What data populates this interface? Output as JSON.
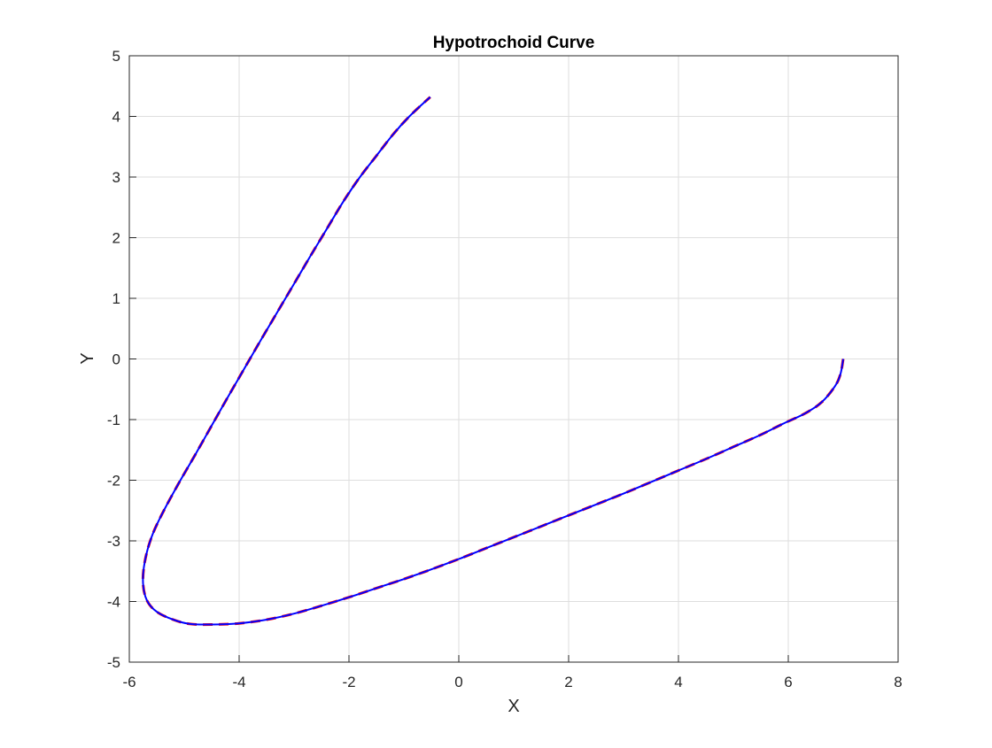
{
  "chart_data": {
    "type": "line",
    "title": "Hypotrochoid Curve",
    "xlabel": "X",
    "ylabel": "Y",
    "xlim": [
      -6,
      8
    ],
    "ylim": [
      -5,
      5
    ],
    "xticks": [
      "-6",
      "-4",
      "-2",
      "0",
      "2",
      "4",
      "6",
      "8"
    ],
    "yticks": [
      "-5",
      "-4",
      "-3",
      "-2",
      "-1",
      "0",
      "1",
      "2",
      "3",
      "4",
      "5"
    ],
    "grid": true,
    "legend": "none",
    "series": [
      {
        "style": "dashed",
        "color": "#ff0000",
        "x": [
          7.0,
          6.95,
          6.85,
          6.6,
          6.3,
          5.9,
          5.5,
          5.0,
          4.5,
          4.0,
          3.5,
          3.0,
          2.5,
          2.0,
          1.5,
          1.0,
          0.5,
          0.0,
          -0.5,
          -1.0,
          -1.5,
          -2.0,
          -2.5,
          -3.0,
          -3.5,
          -4.0,
          -4.5,
          -4.9,
          -5.2,
          -5.5,
          -5.68,
          -5.75,
          -5.72,
          -5.6,
          -5.4,
          -5.1,
          -4.8,
          -4.5,
          -4.2,
          -3.9,
          -3.6,
          -3.3,
          -3.0,
          -2.7,
          -2.4,
          -2.1,
          -1.8,
          -1.5,
          -1.2,
          -0.9,
          -0.52
        ],
        "y": [
          0.0,
          -0.25,
          -0.45,
          -0.72,
          -0.9,
          -1.07,
          -1.25,
          -1.45,
          -1.65,
          -1.84,
          -2.03,
          -2.22,
          -2.4,
          -2.58,
          -2.76,
          -2.94,
          -3.12,
          -3.3,
          -3.47,
          -3.63,
          -3.78,
          -3.93,
          -4.07,
          -4.2,
          -4.3,
          -4.36,
          -4.38,
          -4.37,
          -4.3,
          -4.17,
          -3.98,
          -3.7,
          -3.35,
          -2.95,
          -2.55,
          -2.05,
          -1.58,
          -1.1,
          -0.62,
          -0.15,
          0.32,
          0.78,
          1.24,
          1.7,
          2.15,
          2.6,
          3.0,
          3.35,
          3.7,
          4.0,
          4.32
        ]
      },
      {
        "style": "solid",
        "color": "#0000ff",
        "x": [
          7.0,
          6.95,
          6.85,
          6.6,
          6.3,
          5.9,
          5.5,
          5.0,
          4.5,
          4.0,
          3.5,
          3.0,
          2.5,
          2.0,
          1.5,
          1.0,
          0.5,
          0.0,
          -0.5,
          -1.0,
          -1.5,
          -2.0,
          -2.5,
          -3.0,
          -3.5,
          -4.0,
          -4.5,
          -4.9,
          -5.2,
          -5.5,
          -5.68,
          -5.75,
          -5.72,
          -5.6,
          -5.4,
          -5.1,
          -4.8,
          -4.5,
          -4.2,
          -3.9,
          -3.6,
          -3.3,
          -3.0,
          -2.7,
          -2.4,
          -2.1,
          -1.8,
          -1.5,
          -1.2,
          -0.9,
          -0.52
        ],
        "y": [
          0.0,
          -0.25,
          -0.45,
          -0.72,
          -0.9,
          -1.07,
          -1.25,
          -1.45,
          -1.65,
          -1.84,
          -2.03,
          -2.22,
          -2.4,
          -2.58,
          -2.76,
          -2.94,
          -3.12,
          -3.3,
          -3.47,
          -3.63,
          -3.78,
          -3.93,
          -4.07,
          -4.2,
          -4.3,
          -4.36,
          -4.38,
          -4.37,
          -4.3,
          -4.17,
          -3.98,
          -3.7,
          -3.35,
          -2.95,
          -2.55,
          -2.05,
          -1.58,
          -1.1,
          -0.62,
          -0.15,
          0.32,
          0.78,
          1.24,
          1.7,
          2.15,
          2.6,
          3.0,
          3.35,
          3.7,
          4.0,
          4.32
        ]
      }
    ]
  }
}
